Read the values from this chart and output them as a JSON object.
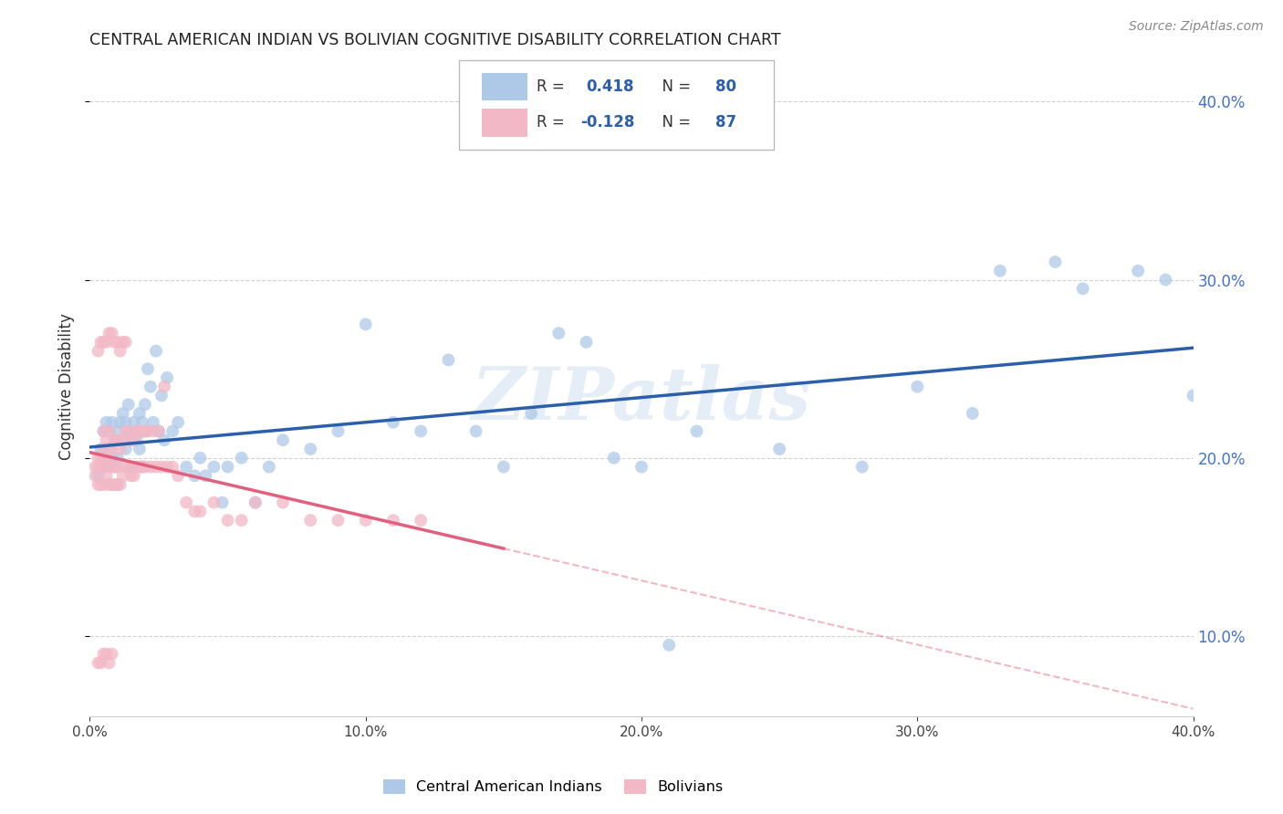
{
  "title": "CENTRAL AMERICAN INDIAN VS BOLIVIAN COGNITIVE DISABILITY CORRELATION CHART",
  "source": "Source: ZipAtlas.com",
  "ylabel": "Cognitive Disability",
  "legend_label_blue": "Central American Indians",
  "legend_label_pink": "Bolivians",
  "R_blue": 0.418,
  "N_blue": 80,
  "R_pink": -0.128,
  "N_pink": 87,
  "blue_color": "#aec9e8",
  "pink_color": "#f2b8c6",
  "blue_line_color": "#2b5faa",
  "pink_line_color": "#e0607e",
  "watermark_text": "ZIPatlas",
  "background_color": "#ffffff",
  "grid_color": "#cccccc",
  "xmin": 0.0,
  "xmax": 0.4,
  "ymin": 0.055,
  "ymax": 0.425,
  "right_yticks": [
    0.1,
    0.2,
    0.3,
    0.4
  ],
  "xticks": [
    0.0,
    0.1,
    0.2,
    0.3,
    0.4
  ],
  "blue_x": [
    0.003,
    0.004,
    0.005,
    0.005,
    0.006,
    0.006,
    0.007,
    0.007,
    0.008,
    0.008,
    0.009,
    0.009,
    0.01,
    0.01,
    0.01,
    0.011,
    0.012,
    0.012,
    0.013,
    0.013,
    0.014,
    0.014,
    0.015,
    0.015,
    0.016,
    0.016,
    0.017,
    0.017,
    0.018,
    0.018,
    0.019,
    0.019,
    0.02,
    0.02,
    0.021,
    0.022,
    0.023,
    0.024,
    0.025,
    0.026,
    0.027,
    0.028,
    0.03,
    0.032,
    0.035,
    0.038,
    0.04,
    0.042,
    0.045,
    0.048,
    0.05,
    0.055,
    0.06,
    0.065,
    0.07,
    0.08,
    0.09,
    0.1,
    0.11,
    0.12,
    0.13,
    0.14,
    0.15,
    0.16,
    0.17,
    0.18,
    0.19,
    0.2,
    0.21,
    0.22,
    0.25,
    0.28,
    0.3,
    0.32,
    0.33,
    0.35,
    0.36,
    0.38,
    0.39,
    0.4
  ],
  "blue_y": [
    0.19,
    0.205,
    0.2,
    0.215,
    0.195,
    0.22,
    0.205,
    0.215,
    0.2,
    0.22,
    0.21,
    0.195,
    0.215,
    0.2,
    0.185,
    0.22,
    0.21,
    0.225,
    0.205,
    0.22,
    0.215,
    0.23,
    0.195,
    0.21,
    0.22,
    0.195,
    0.21,
    0.215,
    0.225,
    0.205,
    0.22,
    0.195,
    0.215,
    0.23,
    0.25,
    0.24,
    0.22,
    0.26,
    0.215,
    0.235,
    0.21,
    0.245,
    0.215,
    0.22,
    0.195,
    0.19,
    0.2,
    0.19,
    0.195,
    0.175,
    0.195,
    0.2,
    0.175,
    0.195,
    0.21,
    0.205,
    0.215,
    0.275,
    0.22,
    0.215,
    0.255,
    0.215,
    0.195,
    0.225,
    0.27,
    0.265,
    0.2,
    0.195,
    0.095,
    0.215,
    0.205,
    0.195,
    0.24,
    0.225,
    0.305,
    0.31,
    0.295,
    0.305,
    0.3,
    0.235
  ],
  "pink_x": [
    0.002,
    0.002,
    0.003,
    0.003,
    0.003,
    0.004,
    0.004,
    0.004,
    0.005,
    0.005,
    0.005,
    0.005,
    0.006,
    0.006,
    0.006,
    0.007,
    0.007,
    0.007,
    0.008,
    0.008,
    0.008,
    0.009,
    0.009,
    0.009,
    0.01,
    0.01,
    0.01,
    0.011,
    0.011,
    0.012,
    0.012,
    0.013,
    0.013,
    0.014,
    0.014,
    0.015,
    0.015,
    0.016,
    0.016,
    0.017,
    0.017,
    0.018,
    0.018,
    0.019,
    0.019,
    0.02,
    0.02,
    0.021,
    0.022,
    0.023,
    0.024,
    0.025,
    0.026,
    0.027,
    0.028,
    0.03,
    0.032,
    0.035,
    0.038,
    0.04,
    0.045,
    0.05,
    0.055,
    0.06,
    0.07,
    0.08,
    0.09,
    0.1,
    0.11,
    0.12,
    0.005,
    0.006,
    0.007,
    0.008,
    0.003,
    0.004,
    0.005,
    0.006,
    0.007,
    0.008,
    0.009,
    0.01,
    0.011,
    0.012,
    0.013,
    0.003,
    0.004
  ],
  "pink_y": [
    0.19,
    0.195,
    0.185,
    0.195,
    0.2,
    0.185,
    0.195,
    0.2,
    0.185,
    0.195,
    0.205,
    0.215,
    0.19,
    0.2,
    0.21,
    0.185,
    0.2,
    0.215,
    0.185,
    0.195,
    0.205,
    0.185,
    0.195,
    0.21,
    0.185,
    0.195,
    0.21,
    0.185,
    0.205,
    0.19,
    0.21,
    0.195,
    0.215,
    0.195,
    0.215,
    0.19,
    0.21,
    0.19,
    0.21,
    0.195,
    0.215,
    0.195,
    0.215,
    0.195,
    0.215,
    0.195,
    0.215,
    0.215,
    0.195,
    0.215,
    0.195,
    0.215,
    0.195,
    0.24,
    0.195,
    0.195,
    0.19,
    0.175,
    0.17,
    0.17,
    0.175,
    0.165,
    0.165,
    0.175,
    0.175,
    0.165,
    0.165,
    0.165,
    0.165,
    0.165,
    0.09,
    0.09,
    0.085,
    0.09,
    0.26,
    0.265,
    0.265,
    0.265,
    0.27,
    0.27,
    0.265,
    0.265,
    0.26,
    0.265,
    0.265,
    0.085,
    0.085
  ]
}
